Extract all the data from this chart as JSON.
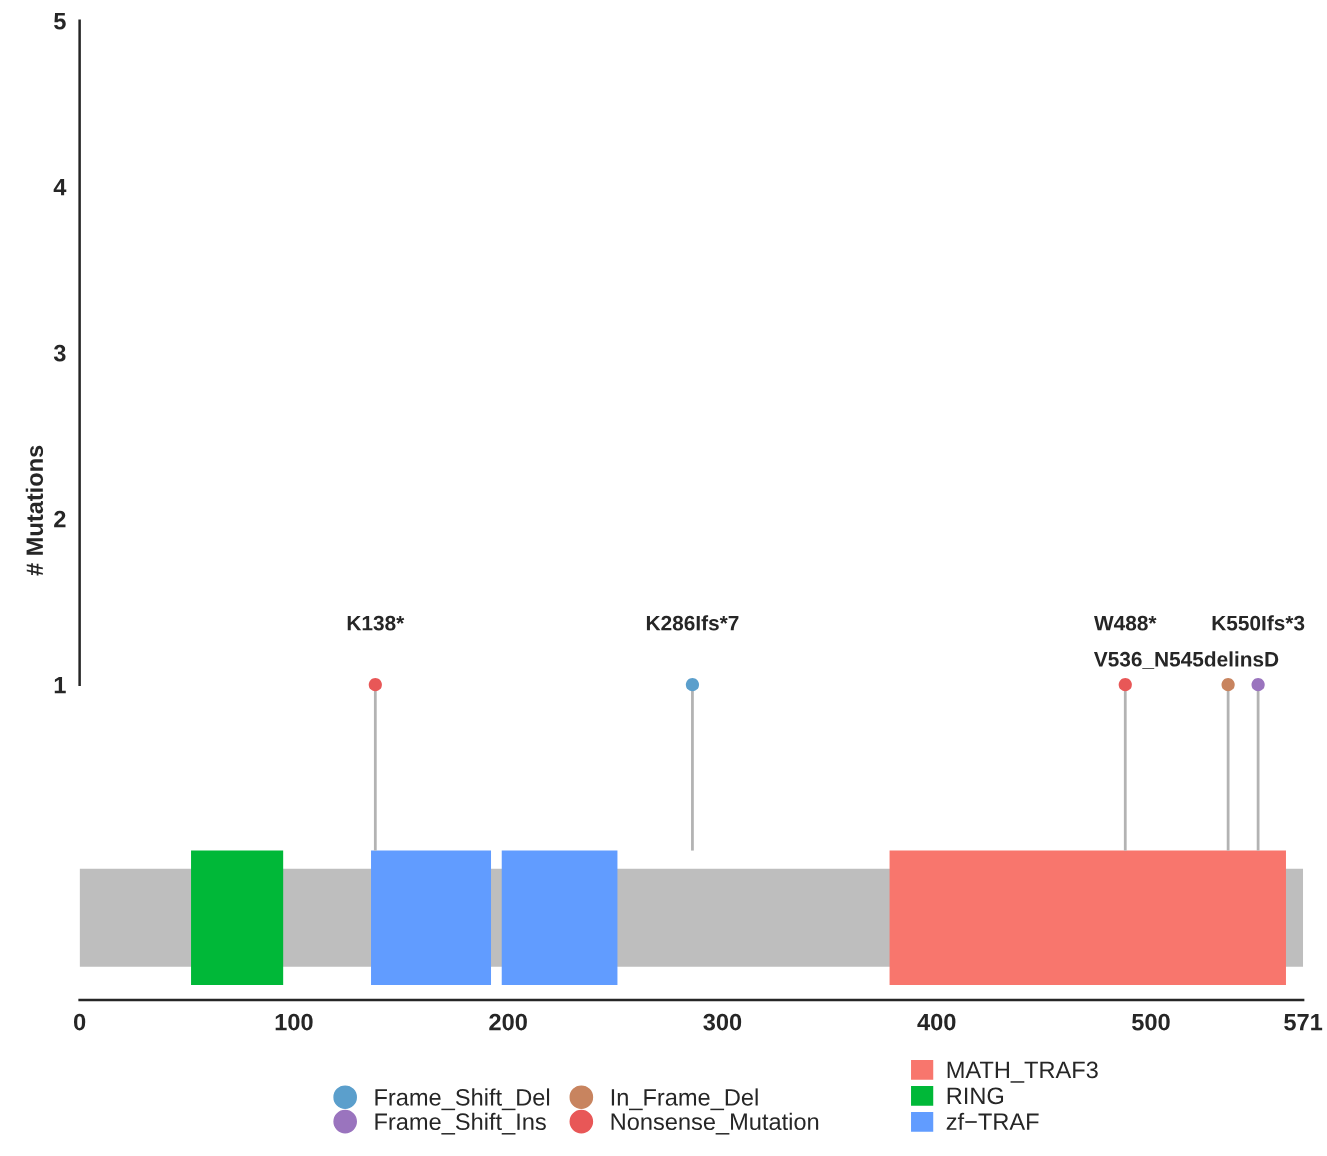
{
  "chart_data": {
    "type": "lollipop",
    "ylabel": "# Mutations",
    "xlim": [
      0,
      571
    ],
    "xticks": [
      0,
      100,
      200,
      300,
      400,
      500,
      571
    ],
    "ylim": [
      -0.9,
      5
    ],
    "yticks": [
      1,
      2,
      3,
      4,
      5
    ],
    "grid": false,
    "legend": "bottom",
    "marker": "circle",
    "series": [
      {
        "name": "Frame_Shift_Del",
        "color": "#5b9fcc",
        "x": [
          286
        ],
        "values": [
          1
        ]
      },
      {
        "name": "Frame_Shift_Ins",
        "color": "#9a74be",
        "x": [
          550
        ],
        "values": [
          1
        ]
      },
      {
        "name": "In_Frame_Del",
        "color": "#c8845f",
        "x": [
          536
        ],
        "values": [
          1
        ]
      },
      {
        "name": "Nonsense_Mutation",
        "color": "#e85757",
        "x": [
          138,
          488
        ],
        "values": [
          1,
          1
        ]
      }
    ],
    "bands": [
      {
        "axis": "x",
        "from": 0,
        "to": 571,
        "color": "#bebebe"
      },
      {
        "axis": "x",
        "from": 378,
        "to": 563,
        "label": "MATH_TRAF3",
        "color": "#f8766d"
      },
      {
        "axis": "x",
        "from": 52,
        "to": 95,
        "label": "RING",
        "color": "#00b838"
      },
      {
        "axis": "x",
        "from": 136,
        "to": 192,
        "label": "zf−TRAF",
        "color": "#619cff"
      },
      {
        "axis": "x",
        "from": 197,
        "to": 251,
        "color": "#619cff"
      }
    ],
    "annotations": [
      {
        "text": "K138*",
        "x": 138,
        "y": 1
      },
      {
        "text": "K286Ifs*7",
        "x": 286,
        "y": 1
      },
      {
        "text": "W488*",
        "x": 488,
        "y": 1
      },
      {
        "text": "V536_N545delinsD",
        "x": 536,
        "y": 1
      },
      {
        "text": "K550Ifs*3",
        "x": 550,
        "y": 1
      }
    ]
  }
}
